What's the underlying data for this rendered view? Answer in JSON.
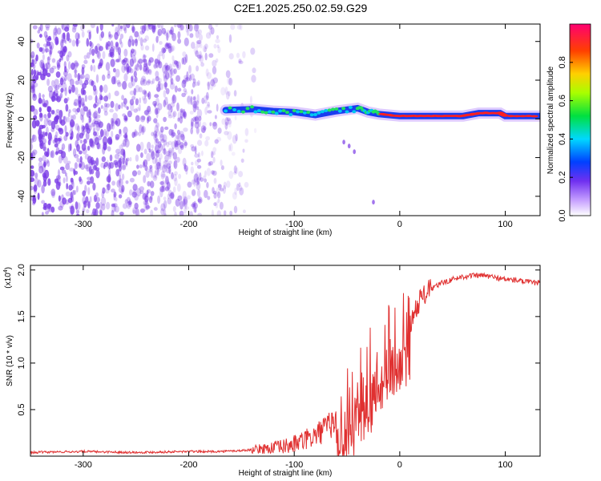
{
  "title": "C2E1.2025.250.02.59.G29",
  "chart_data": [
    {
      "type": "heatmap",
      "xlabel": "Height of straight line (km)",
      "ylabel": "Frequency (Hz)",
      "xlim": [
        -350,
        133
      ],
      "ylim": [
        -50,
        49
      ],
      "xticks": [
        -300,
        -200,
        -100,
        0,
        100
      ],
      "xtick_labels": [
        "-300",
        "-200",
        "-100",
        "0",
        "100"
      ],
      "yticks": [
        -40,
        -20,
        0,
        20,
        40
      ],
      "ytick_labels": [
        "-40",
        "-20",
        "0",
        "20",
        "40"
      ],
      "noise_region_x": [
        -350,
        -135
      ],
      "signal_track": [
        {
          "x": -165,
          "freq": 4.5
        },
        {
          "x": -140,
          "freq": 5.0
        },
        {
          "x": -120,
          "freq": 4.0
        },
        {
          "x": -100,
          "freq": 3.5
        },
        {
          "x": -80,
          "freq": 2.0
        },
        {
          "x": -60,
          "freq": 4.0
        },
        {
          "x": -40,
          "freq": 5.5
        },
        {
          "x": -30,
          "freq": 3.5
        },
        {
          "x": -20,
          "freq": 2.5
        },
        {
          "x": 0,
          "freq": 1.5
        },
        {
          "x": 20,
          "freq": 1.5
        },
        {
          "x": 40,
          "freq": 1.5
        },
        {
          "x": 60,
          "freq": 1.5
        },
        {
          "x": 75,
          "freq": 3.0
        },
        {
          "x": 95,
          "freq": 3.0
        },
        {
          "x": 100,
          "freq": 1.5
        },
        {
          "x": 133,
          "freq": 1.5
        }
      ],
      "spur_points": [
        {
          "x": -53,
          "freq": -12
        },
        {
          "x": -48,
          "freq": -14
        },
        {
          "x": -43,
          "freq": -17
        },
        {
          "x": -25,
          "freq": -43
        }
      ],
      "colorbar": {
        "label": "Normalized spectral amplitude",
        "range": [
          0.0,
          1.0
        ],
        "ticks": [
          0.0,
          0.2,
          0.4,
          0.6,
          0.8
        ],
        "tick_labels": [
          "0.0",
          "0.2",
          "0.4",
          "0.6",
          "0.8"
        ]
      }
    },
    {
      "type": "line",
      "xlabel": "Height of straight line (km)",
      "ylabel": "SNR (10 * v/v)",
      "scale_label": "(x10",
      "scale_exp": "4",
      "scale_close": ")",
      "xlim": [
        -350,
        133
      ],
      "ylim": [
        0,
        2.05
      ],
      "xticks": [
        -300,
        -200,
        -100,
        0,
        100
      ],
      "xtick_labels": [
        "-300",
        "-200",
        "-100",
        "0",
        "100"
      ],
      "yticks": [
        0.5,
        1.0,
        1.5,
        2.0
      ],
      "ytick_labels": [
        "0.5",
        "1.0",
        "1.5",
        "2.0"
      ],
      "series": [
        {
          "name": "SNR",
          "color": "#e03030",
          "x": [
            -350,
            -300,
            -250,
            -200,
            -170,
            -150,
            -130,
            -110,
            -100,
            -90,
            -80,
            -70,
            -60,
            -50,
            -45,
            -40,
            -35,
            -30,
            -25,
            -20,
            -15,
            -10,
            -5,
            0,
            5,
            10,
            15,
            20,
            30,
            40,
            50,
            60,
            70,
            80,
            90,
            100,
            110,
            120,
            133
          ],
          "y": [
            0.04,
            0.05,
            0.04,
            0.05,
            0.05,
            0.06,
            0.08,
            0.1,
            0.13,
            0.17,
            0.22,
            0.3,
            0.38,
            0.48,
            0.58,
            0.65,
            0.72,
            0.8,
            0.88,
            0.98,
            1.08,
            1.15,
            1.2,
            1.24,
            1.3,
            1.42,
            1.58,
            1.7,
            1.8,
            1.86,
            1.9,
            1.93,
            1.94,
            1.94,
            1.92,
            1.9,
            1.89,
            1.87,
            1.86
          ]
        }
      ]
    }
  ],
  "colors": {
    "noise": "#7a3be6",
    "signal_low": "#1a3cf0",
    "signal_mid": "#20e060",
    "signal_high": "#ff2020",
    "snr_line": "#e03030"
  }
}
